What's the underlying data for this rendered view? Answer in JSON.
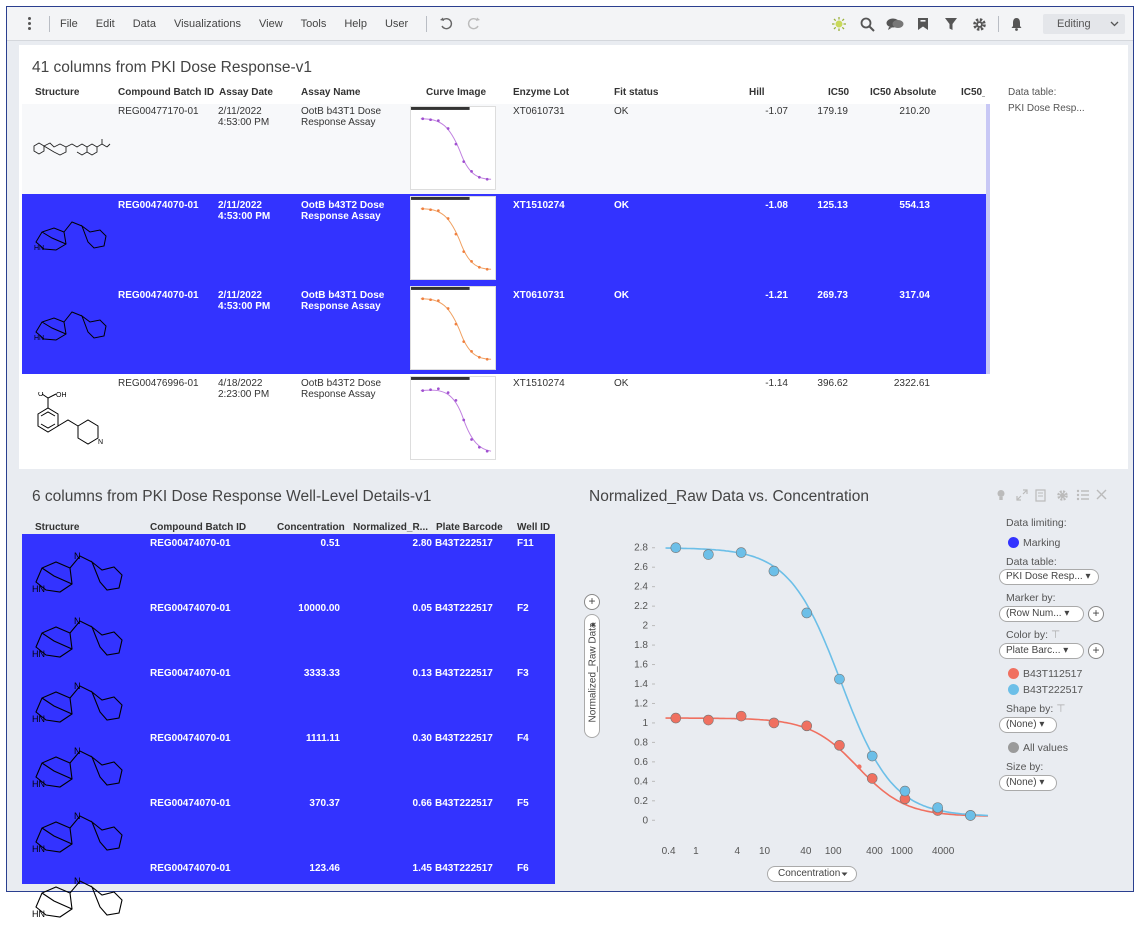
{
  "menu": {
    "file": "File",
    "edit": "Edit",
    "data": "Data",
    "visualizations": "Visualizations",
    "view": "View",
    "tools": "Tools",
    "help": "Help",
    "user": "User"
  },
  "mode": {
    "label": "Editing"
  },
  "top_panel": {
    "title": "41 columns from PKI Dose Response-v1",
    "columns": [
      "Structure",
      "Compound Batch ID",
      "Assay Date",
      "Assay Name",
      "Curve Image",
      "Enzyme Lot",
      "Fit status",
      "Hill",
      "IC50",
      "IC50 Absolute",
      "IC50_"
    ],
    "data_table_label": "Data table:",
    "data_table_value": "PKI Dose Resp...",
    "rows": [
      {
        "batch": "REG00477170-01",
        "date1": "2/11/2022",
        "date2": "4:53:00 PM",
        "assay1": "OotB b43T1 Dose",
        "assay2": "Response Assay",
        "lot": "XT0610731",
        "fit": "OK",
        "hill": "-1.07",
        "ic50": "179.19",
        "ic50abs": "210.20"
      },
      {
        "batch": "REG00474070-01",
        "date1": "2/11/2022",
        "date2": "4:53:00 PM",
        "assay1": "OotB b43T2 Dose",
        "assay2": "Response Assay",
        "lot": "XT1510274",
        "fit": "OK",
        "hill": "-1.08",
        "ic50": "125.13",
        "ic50abs": "554.13"
      },
      {
        "batch": "REG00474070-01",
        "date1": "2/11/2022",
        "date2": "4:53:00 PM",
        "assay1": "OotB b43T1 Dose",
        "assay2": "Response Assay",
        "lot": "XT0610731",
        "fit": "OK",
        "hill": "-1.21",
        "ic50": "269.73",
        "ic50abs": "317.04"
      },
      {
        "batch": "REG00476996-01",
        "date1": "4/18/2022",
        "date2": "2:23:00 PM",
        "assay1": "OotB b43T2 Dose",
        "assay2": "Response Assay",
        "lot": "XT1510274",
        "fit": "OK",
        "hill": "-1.14",
        "ic50": "396.62",
        "ic50abs": "2322.61"
      }
    ]
  },
  "well_panel": {
    "title": "6 columns from PKI Dose Response Well-Level Details-v1",
    "columns": [
      "Structure",
      "Compound Batch ID",
      "Concentration",
      "Normalized_R...",
      "Plate Barcode",
      "Well ID"
    ],
    "rows": [
      {
        "batch": "REG00474070-01",
        "conc": "0.51",
        "norm": "2.80",
        "plate": "B43T222517",
        "well": "F11"
      },
      {
        "batch": "REG00474070-01",
        "conc": "10000.00",
        "norm": "0.05",
        "plate": "B43T222517",
        "well": "F2"
      },
      {
        "batch": "REG00474070-01",
        "conc": "3333.33",
        "norm": "0.13",
        "plate": "B43T222517",
        "well": "F3"
      },
      {
        "batch": "REG00474070-01",
        "conc": "1111.11",
        "norm": "0.30",
        "plate": "B43T222517",
        "well": "F4"
      },
      {
        "batch": "REG00474070-01",
        "conc": "370.37",
        "norm": "0.66",
        "plate": "B43T222517",
        "well": "F5"
      },
      {
        "batch": "REG00474070-01",
        "conc": "123.46",
        "norm": "1.45",
        "plate": "B43T222517",
        "well": "F6"
      }
    ]
  },
  "chart_panel": {
    "title": "Normalized_Raw Data vs. Concentration",
    "x_axis_selector": "Concentration",
    "y_axis_selector": "Normalized_Raw Data",
    "data_limiting_label": "Data limiting:",
    "marking_label": "Marking",
    "data_table_label": "Data table:",
    "data_table_value": "PKI Dose Resp...",
    "marker_by_label": "Marker by:",
    "marker_by_value": "(Row Num...",
    "color_by_label": "Color by:",
    "color_by_value": "Plate Barc...",
    "shape_by_label": "Shape by:",
    "shape_by_value": "(None)",
    "all_values_label": "All values",
    "size_by_label": "Size by:",
    "size_by_value": "(None)"
  },
  "colors": {
    "marking": "#3333ff",
    "red_series": "#f07060",
    "blue_series": "#6cbfe8",
    "all_values": "#9a9a9a"
  },
  "chart_data": {
    "type": "scatter",
    "title": "Normalized_Raw Data vs. Concentration",
    "xlabel": "Concentration",
    "ylabel": "Normalized_Raw Data",
    "x_scale": "log",
    "xlim": [
      0.3,
      18000
    ],
    "ylim": [
      -0.1,
      2.9
    ],
    "x_ticks": [
      "0.4",
      "1",
      "4",
      "10",
      "40",
      "100",
      "400",
      "1000",
      "4000"
    ],
    "y_ticks": [
      "0",
      "0.2",
      "0.4",
      "0.6",
      "0.8",
      "1",
      "1.2",
      "1.4",
      "1.6",
      "1.8",
      "2",
      "2.2",
      "2.4",
      "2.6",
      "2.8"
    ],
    "legend_position": "right",
    "series": [
      {
        "name": "B43T112517",
        "points": [
          [
            0.51,
            1.05
          ],
          [
            1.52,
            1.03
          ],
          [
            4.57,
            1.07
          ],
          [
            13.7,
            1.0
          ],
          [
            41.2,
            0.97
          ],
          [
            123.46,
            0.77
          ],
          [
            370.37,
            0.43
          ],
          [
            1111.11,
            0.22
          ],
          [
            3333.33,
            0.1
          ],
          [
            10000,
            0.05
          ]
        ],
        "extra_small_points": [
          [
            240,
            0.55
          ]
        ]
      },
      {
        "name": "B43T222517",
        "points": [
          [
            0.51,
            2.8
          ],
          [
            1.52,
            2.73
          ],
          [
            4.57,
            2.75
          ],
          [
            13.7,
            2.56
          ],
          [
            41.2,
            2.13
          ],
          [
            123.46,
            1.45
          ],
          [
            370.37,
            0.66
          ],
          [
            1111.11,
            0.3
          ],
          [
            3333.33,
            0.13
          ],
          [
            10000,
            0.05
          ]
        ]
      }
    ]
  }
}
